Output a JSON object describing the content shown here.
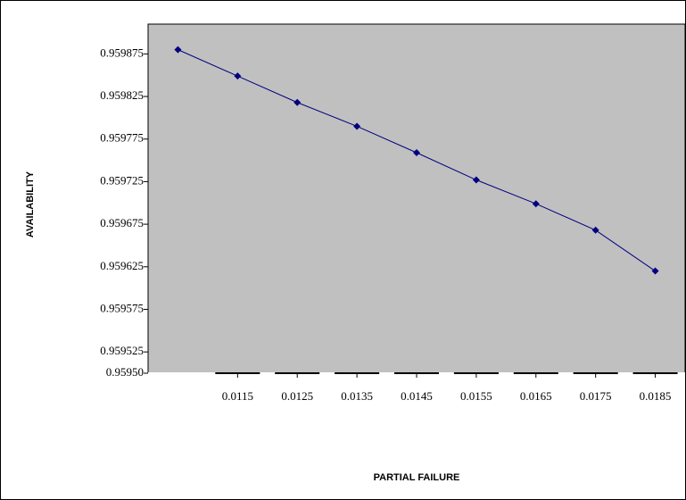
{
  "chart_data": {
    "type": "line",
    "x_label": "PARTIAL FAILURE",
    "y_label": "AVAILABILITY",
    "x": [
      0.0105,
      0.0115,
      0.0125,
      0.0135,
      0.0145,
      0.0155,
      0.0165,
      0.0175,
      0.0185
    ],
    "series": [
      {
        "name": null,
        "color": "#000080",
        "values": [
          0.95988,
          0.959849,
          0.959818,
          0.95979,
          0.959759,
          0.959727,
          0.959699,
          0.959668,
          0.95962
        ]
      }
    ],
    "xlim": [
      0.01,
      0.019
    ],
    "xticks": [
      0.0115,
      0.0125,
      0.0135,
      0.0145,
      0.0155,
      0.0165,
      0.0175,
      0.0185
    ],
    "ylim": [
      0.9595,
      0.95991
    ],
    "yticks": [
      {
        "value": 0.9595,
        "label": "0.95950"
      },
      0.959525,
      0.959575,
      0.959625,
      0.959675,
      0.959725,
      0.959775,
      0.959825,
      0.959875
    ],
    "plot_background": "#c0c0c0"
  }
}
